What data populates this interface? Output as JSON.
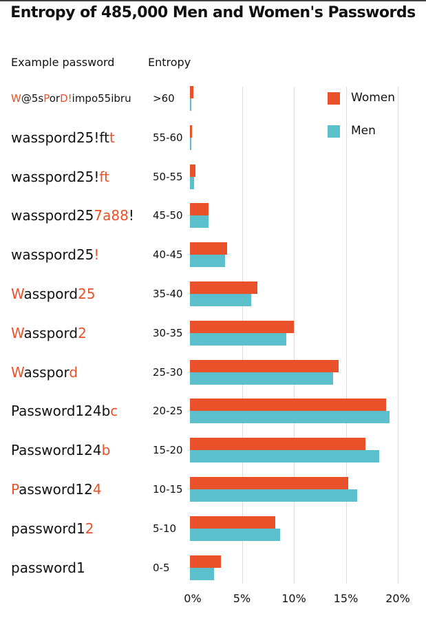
{
  "chart_data": {
    "type": "bar",
    "orientation": "horizontal",
    "title": "Entropy of 485,000 Men and Women's Passwords",
    "column_headers": {
      "password": "Example password",
      "entropy": "Entropy"
    },
    "categories": [
      ">60",
      "55-60",
      "50-55",
      "45-50",
      "40-45",
      "35-40",
      "30-35",
      "25-30",
      "20-25",
      "15-20",
      "10-15",
      "5-10",
      "0-5"
    ],
    "example_passwords": [
      [
        [
          "W",
          true
        ],
        [
          "@5s",
          false
        ],
        [
          "P",
          true
        ],
        [
          "or",
          false
        ],
        [
          "D!",
          true
        ],
        [
          "impo55ibru",
          false
        ]
      ],
      [
        [
          "wasspord25!ft",
          false
        ],
        [
          "t",
          true
        ]
      ],
      [
        [
          "wasspord25!",
          false
        ],
        [
          "ft",
          true
        ]
      ],
      [
        [
          "wasspord25",
          false
        ],
        [
          "7a88",
          true
        ],
        [
          "!",
          false
        ]
      ],
      [
        [
          "wasspord25",
          false
        ],
        [
          "!",
          true
        ]
      ],
      [
        [
          "W",
          true
        ],
        [
          "asspord",
          false
        ],
        [
          "25",
          true
        ]
      ],
      [
        [
          "W",
          true
        ],
        [
          "asspord",
          false
        ],
        [
          "2",
          true
        ]
      ],
      [
        [
          "W",
          true
        ],
        [
          "asspor",
          false
        ],
        [
          "d",
          true
        ]
      ],
      [
        [
          "Password124b",
          false
        ],
        [
          "c",
          true
        ]
      ],
      [
        [
          "Password124",
          false
        ],
        [
          "b",
          true
        ]
      ],
      [
        [
          "P",
          true
        ],
        [
          "assword12",
          false
        ],
        [
          "4",
          true
        ]
      ],
      [
        [
          "password1",
          false
        ],
        [
          "2",
          true
        ]
      ],
      [
        [
          "password1",
          false
        ]
      ]
    ],
    "series": [
      {
        "name": "Women",
        "color": "#e8512a",
        "values": [
          0.3,
          0.2,
          0.5,
          1.8,
          3.6,
          6.5,
          10.0,
          14.3,
          18.9,
          16.9,
          15.2,
          8.2,
          3.0
        ]
      },
      {
        "name": "Men",
        "color": "#5bbfcc",
        "values": [
          0.1,
          0.1,
          0.4,
          1.8,
          3.4,
          5.9,
          9.3,
          13.8,
          19.2,
          18.2,
          16.1,
          8.7,
          2.3
        ]
      }
    ],
    "xlim": [
      0,
      20
    ],
    "x_ticks": [
      "0%",
      "5%",
      "10%",
      "15%",
      "20%"
    ],
    "legend_position": "top-right",
    "grid": true
  }
}
